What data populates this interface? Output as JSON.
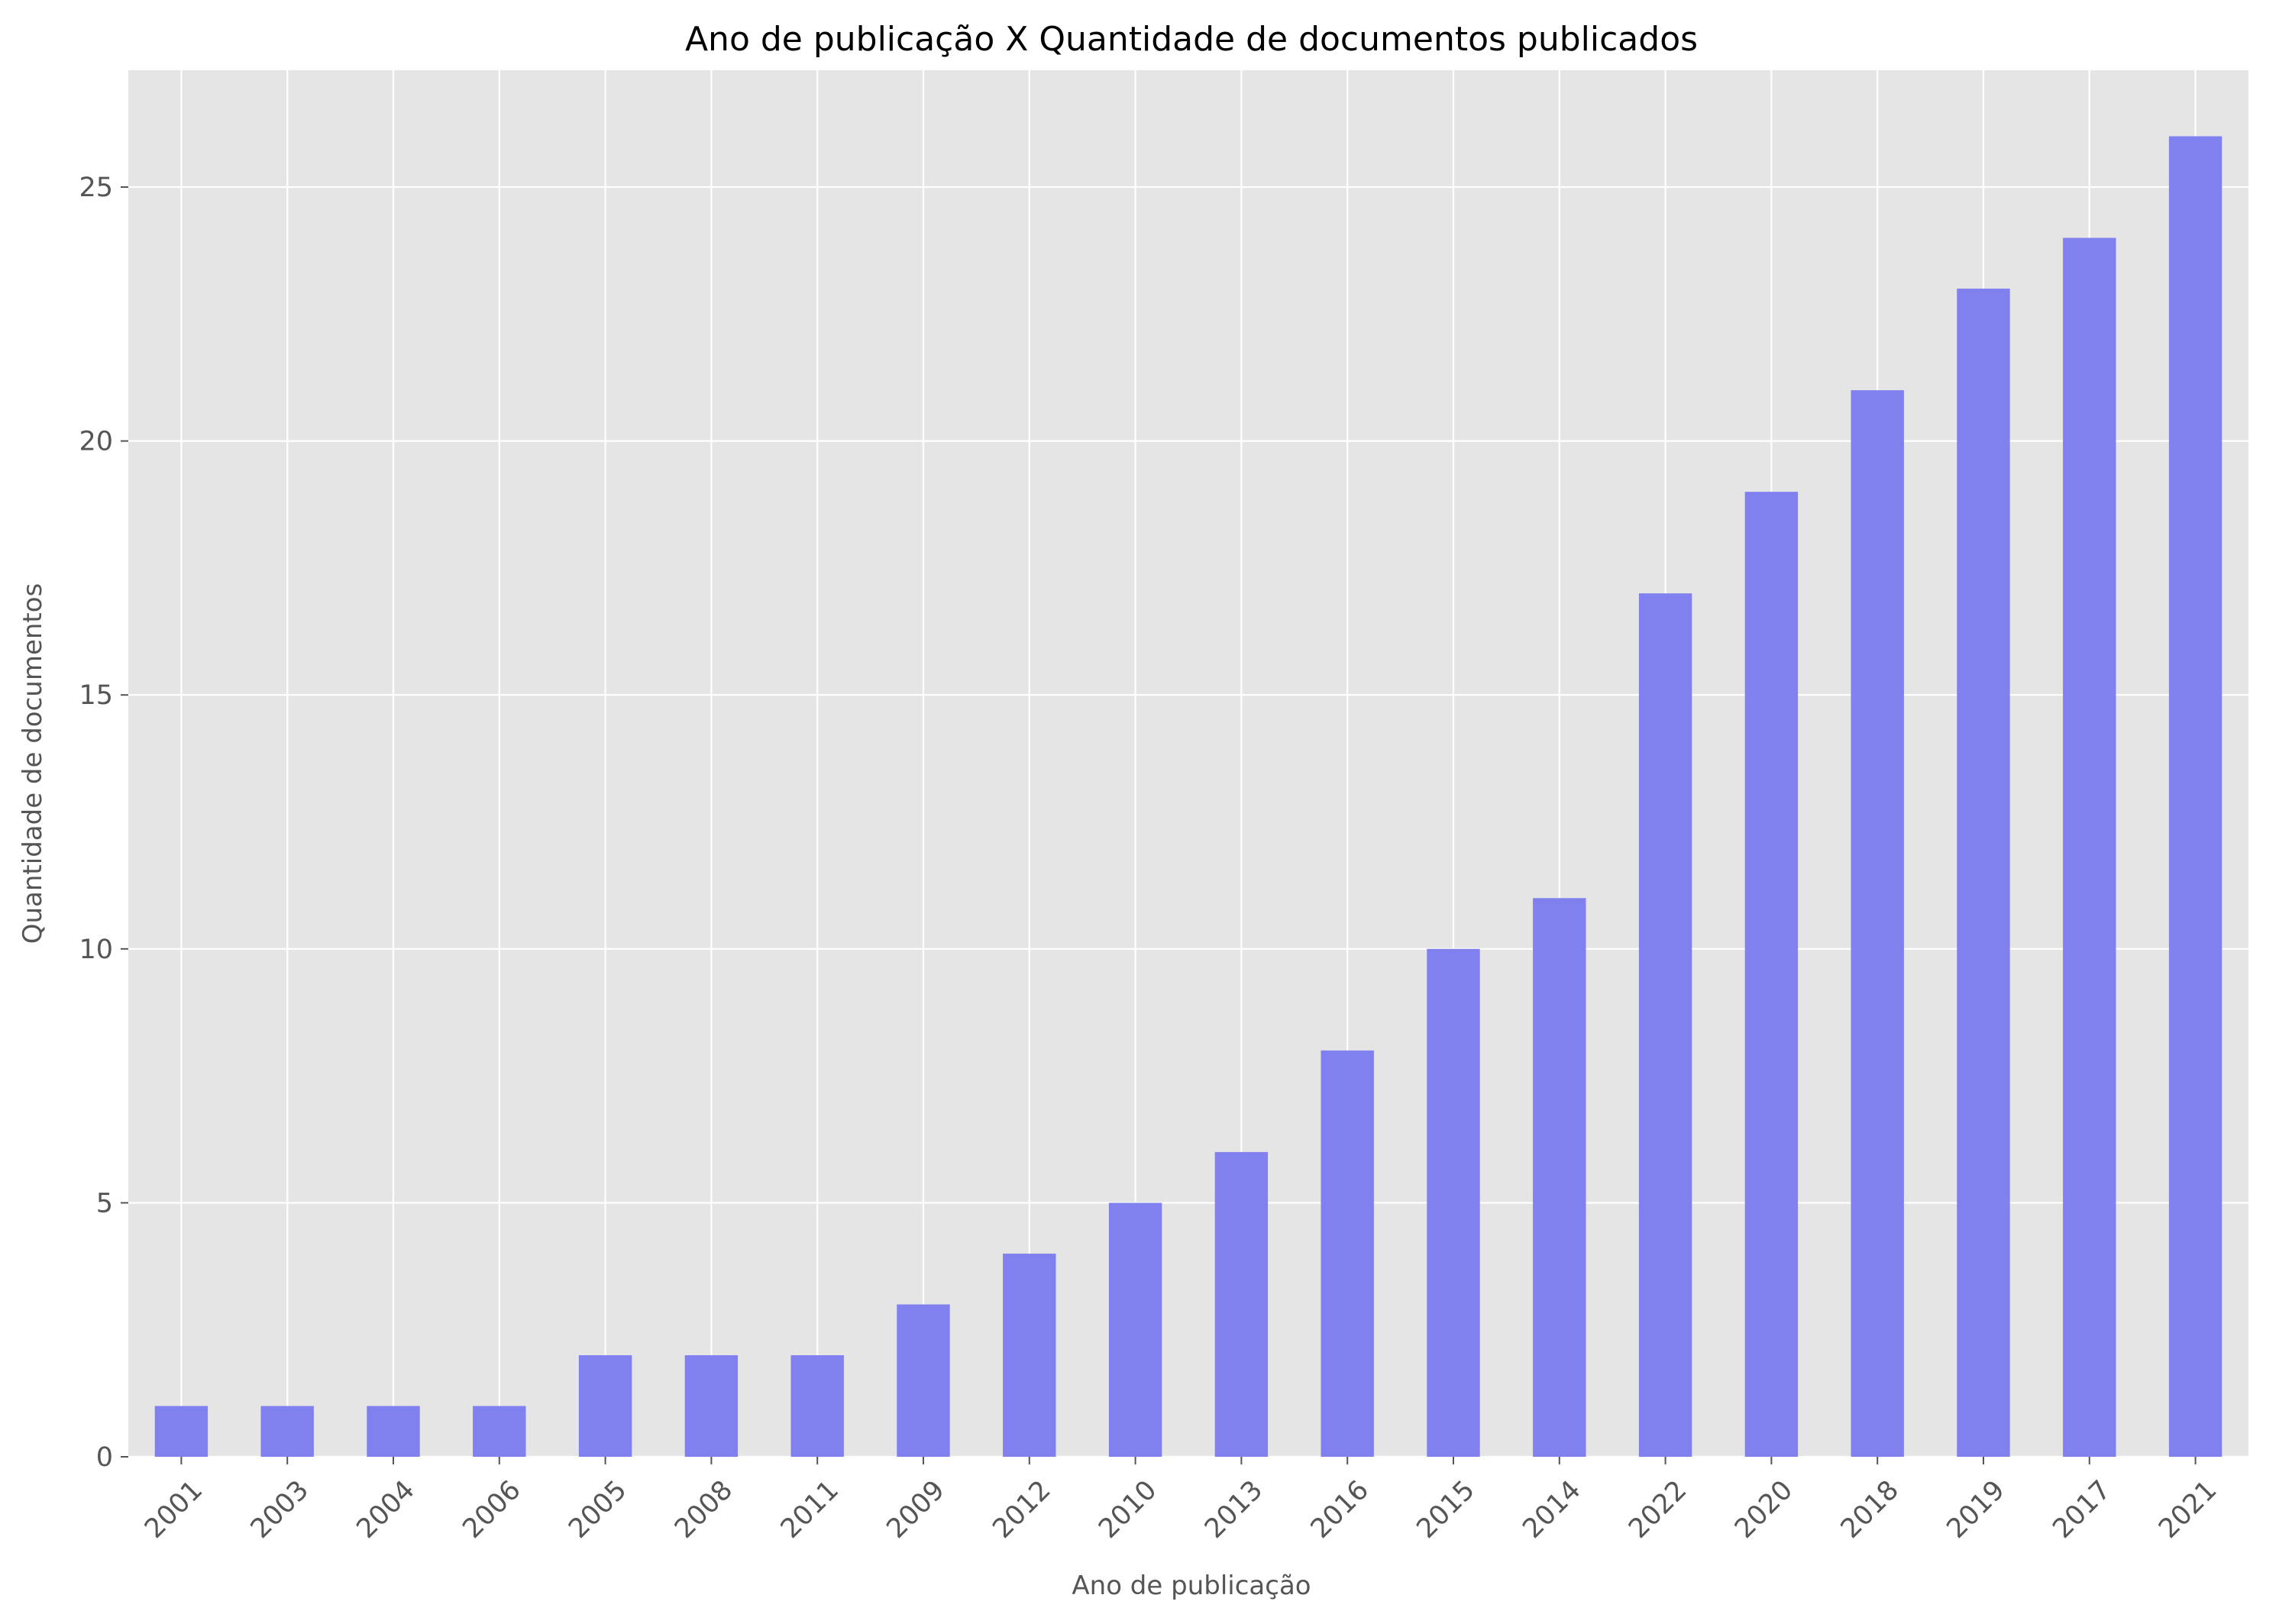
{
  "chart_data": {
    "type": "bar",
    "title": "Ano de publicação X Quantidade de documentos publicados",
    "xlabel": "Ano de publicação",
    "ylabel": "Quantidade de documentos",
    "categories": [
      "2001",
      "2003",
      "2004",
      "2006",
      "2005",
      "2008",
      "2011",
      "2009",
      "2012",
      "2010",
      "2013",
      "2016",
      "2015",
      "2014",
      "2022",
      "2020",
      "2018",
      "2019",
      "2017",
      "2021"
    ],
    "values": [
      1,
      1,
      1,
      1,
      2,
      2,
      2,
      3,
      4,
      5,
      6,
      8,
      10,
      11,
      17,
      19,
      21,
      23,
      24,
      26
    ],
    "ylim": [
      0,
      27.3
    ],
    "yticks": [
      0,
      5,
      10,
      15,
      20,
      25
    ],
    "grid": true,
    "colors": {
      "bar": "#8080ee",
      "plot_background": "#e5e5e5",
      "grid": "#ffffff",
      "tick_text": "#555555",
      "title_text": "#000000"
    }
  }
}
